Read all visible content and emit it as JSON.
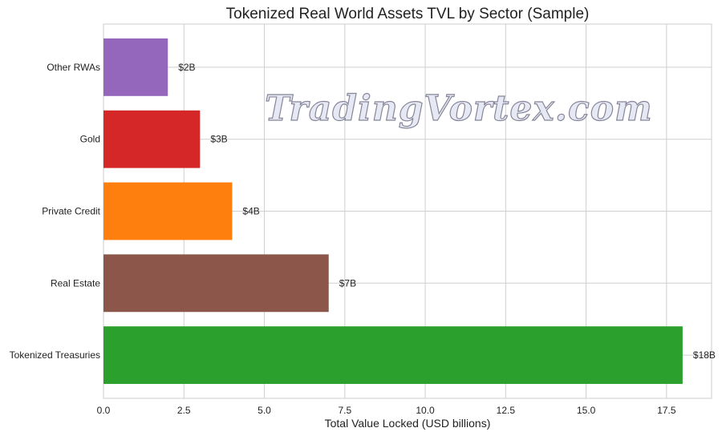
{
  "chart_data": {
    "type": "bar",
    "orientation": "horizontal",
    "title": "Tokenized Real World Assets TVL by Sector (Sample)",
    "xlabel": "Total Value Locked (USD billions)",
    "ylabel": "",
    "categories": [
      "Tokenized Treasuries",
      "Real Estate",
      "Private Credit",
      "Gold",
      "Other RWAs"
    ],
    "values": [
      18,
      7,
      4,
      3,
      2
    ],
    "data_labels": [
      "$18B",
      "$7B",
      "$4B",
      "$3B",
      "$2B"
    ],
    "colors": [
      "#2ca02c",
      "#8c564b",
      "#ff7f0e",
      "#d62728",
      "#9467bd"
    ],
    "xlim": [
      0,
      18.9
    ],
    "xticks": [
      "0.0",
      "2.5",
      "5.0",
      "7.5",
      "10.0",
      "12.5",
      "15.0",
      "17.5"
    ],
    "grid": true,
    "legend": "none"
  },
  "watermark": "TradingVortex.com"
}
